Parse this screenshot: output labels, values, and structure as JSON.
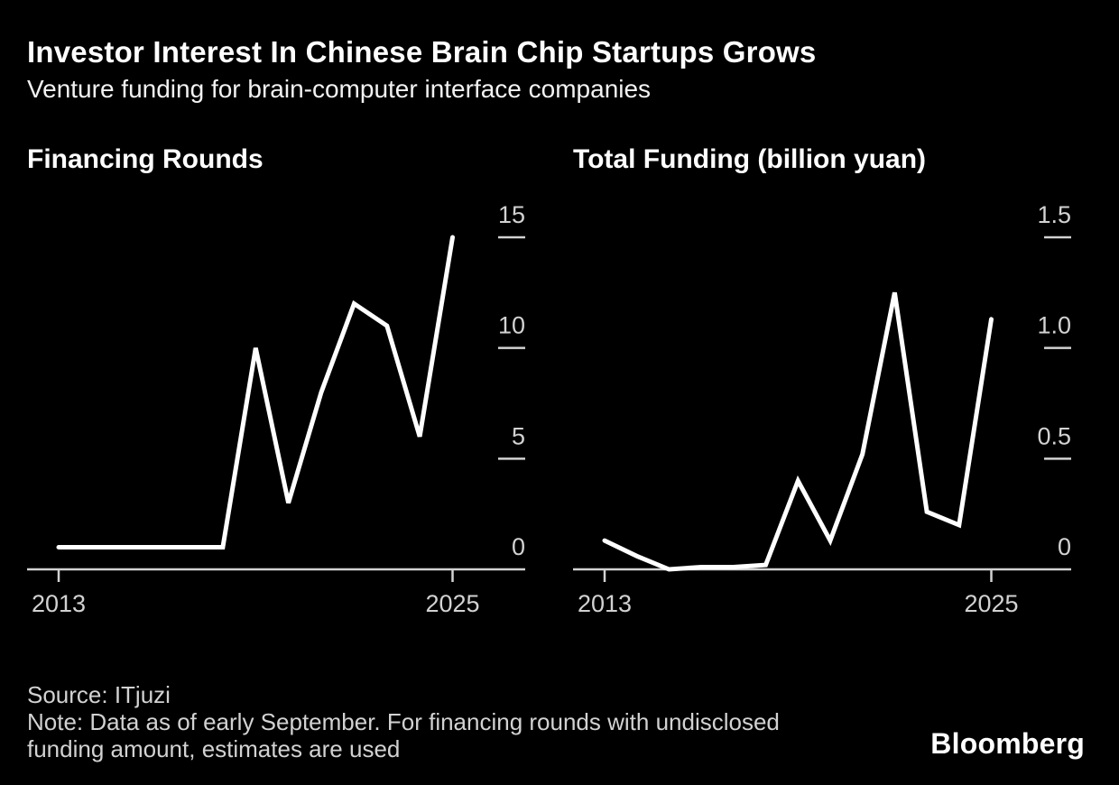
{
  "header": {
    "title": "Investor Interest In Chinese Brain Chip Startups Grows",
    "subtitle": "Venture funding for brain-computer interface companies"
  },
  "footer": {
    "source": "Source: ITjuzi",
    "note_line1": "Note: Data as of early September. For financing rounds with undisclosed",
    "note_line2": "funding amount, estimates are used",
    "logo": "Bloomberg"
  },
  "colors": {
    "background": "#000000",
    "title_text": "#ffffff",
    "subtitle_text": "#f2f2f2",
    "axis_text": "#d2d2d2",
    "axis_line": "#d2d2d2",
    "data_line": "#ffffff"
  },
  "chart_data": [
    {
      "type": "line",
      "title": "Financing Rounds",
      "categories": [
        2013,
        2014,
        2015,
        2016,
        2017,
        2018,
        2019,
        2020,
        2021,
        2022,
        2023,
        2024,
        2025
      ],
      "values": [
        1,
        1,
        1,
        1,
        1,
        1,
        10,
        3,
        8,
        12,
        11,
        6,
        15
      ],
      "x_tick_labels": [
        "2013",
        "2025"
      ],
      "yticks": [
        0,
        5,
        10,
        15
      ],
      "ytick_labels": [
        "0",
        "5",
        "10",
        "15"
      ],
      "ylim": [
        0,
        15
      ],
      "grid": false,
      "legend": "none",
      "line_color": "#ffffff"
    },
    {
      "type": "line",
      "title": "Total Funding (billion yuan)",
      "categories": [
        2013,
        2014,
        2015,
        2016,
        2017,
        2018,
        2019,
        2020,
        2021,
        2022,
        2023,
        2024,
        2025
      ],
      "values": [
        0.13,
        0.06,
        0,
        0.01,
        0.01,
        0.02,
        0.4,
        0.13,
        0.52,
        1.25,
        0.26,
        0.2,
        1.13
      ],
      "x_tick_labels": [
        "2013",
        "2025"
      ],
      "yticks": [
        0,
        0.5,
        1.0,
        1.5
      ],
      "ytick_labels": [
        "0",
        "0.5",
        "1.0",
        "1.5"
      ],
      "ylim": [
        0,
        1.5
      ],
      "grid": false,
      "legend": "none",
      "line_color": "#ffffff"
    }
  ]
}
